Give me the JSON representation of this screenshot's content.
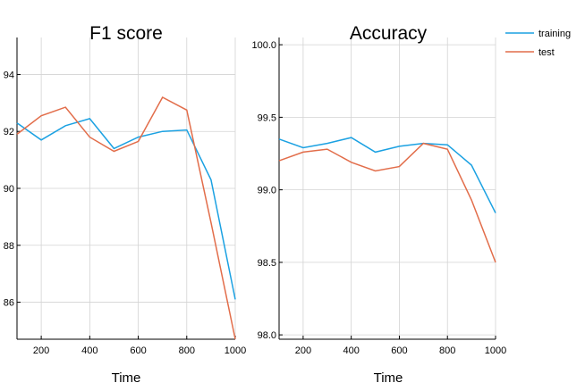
{
  "chart_data": [
    {
      "type": "line",
      "title": "F1 score",
      "xlabel": "Time",
      "ylabel": "",
      "x": [
        100,
        200,
        300,
        400,
        500,
        600,
        700,
        800,
        900,
        1000
      ],
      "xlim": [
        100,
        1000
      ],
      "ylim": [
        84.7,
        95.3
      ],
      "xticks": [
        200,
        400,
        600,
        800,
        1000
      ],
      "yticks": [
        86,
        88,
        90,
        92,
        94
      ],
      "xtick_labels": [
        "200",
        "400",
        "600",
        "800",
        "1000"
      ],
      "ytick_labels": [
        "86",
        "88",
        "90",
        "92",
        "94"
      ],
      "grid": true,
      "series": [
        {
          "name": "training",
          "color": "#1ba1e2",
          "values": [
            92.3,
            91.7,
            92.2,
            92.45,
            91.4,
            91.8,
            92.0,
            92.05,
            90.3,
            86.1
          ]
        },
        {
          "name": "test",
          "color": "#e26d4a",
          "values": [
            91.9,
            92.55,
            92.85,
            91.8,
            91.3,
            91.65,
            93.2,
            92.75,
            88.8,
            84.7
          ]
        }
      ]
    },
    {
      "type": "line",
      "title": "Accuracy",
      "xlabel": "Time",
      "ylabel": "",
      "x": [
        100,
        200,
        300,
        400,
        500,
        600,
        700,
        800,
        900,
        1000
      ],
      "xlim": [
        100,
        1000
      ],
      "ylim": [
        97.97,
        100.05
      ],
      "xticks": [
        200,
        400,
        600,
        800,
        1000
      ],
      "yticks": [
        98.0,
        98.5,
        99.0,
        99.5,
        100.0
      ],
      "xtick_labels": [
        "200",
        "400",
        "600",
        "800",
        "1000"
      ],
      "ytick_labels": [
        "98.0",
        "98.5",
        "99.0",
        "99.5",
        "100.0"
      ],
      "grid": true,
      "series": [
        {
          "name": "training",
          "color": "#1ba1e2",
          "values": [
            99.35,
            99.29,
            99.32,
            99.36,
            99.26,
            99.3,
            99.32,
            99.31,
            99.17,
            98.84
          ]
        },
        {
          "name": "test",
          "color": "#e26d4a",
          "values": [
            99.2,
            99.26,
            99.28,
            99.19,
            99.13,
            99.16,
            99.32,
            99.28,
            98.93,
            98.5
          ]
        }
      ]
    }
  ],
  "legend": {
    "placement": "top-right",
    "entries": [
      {
        "name": "training",
        "color": "#1ba1e2"
      },
      {
        "name": "test",
        "color": "#e26d4a"
      }
    ]
  }
}
